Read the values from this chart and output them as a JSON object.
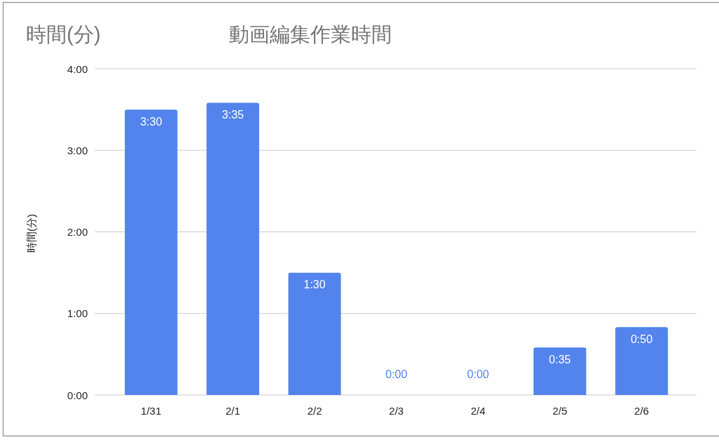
{
  "chart_data": {
    "type": "bar",
    "title": "動画編集作業時間",
    "ylabel": "時間(分)",
    "annotations": [
      "時間(分)"
    ],
    "categories": [
      "1/31",
      "2/1",
      "2/2",
      "2/3",
      "2/4",
      "2/5",
      "2/6"
    ],
    "values": [
      3.5,
      3.5833,
      1.5,
      0,
      0,
      0.5833,
      0.8333
    ],
    "value_labels": [
      "3:30",
      "3:35",
      "1:30",
      "0:00",
      "0:00",
      "0:35",
      "0:50"
    ],
    "color": "#5383ec",
    "ylim": [
      0,
      4
    ],
    "yticks": [
      {
        "value": 0,
        "label": "0:00"
      },
      {
        "value": 1,
        "label": "1:00"
      },
      {
        "value": 2,
        "label": "2:00"
      },
      {
        "value": 3,
        "label": "3:00"
      },
      {
        "value": 4,
        "label": "4:00"
      }
    ],
    "grid": "y"
  }
}
